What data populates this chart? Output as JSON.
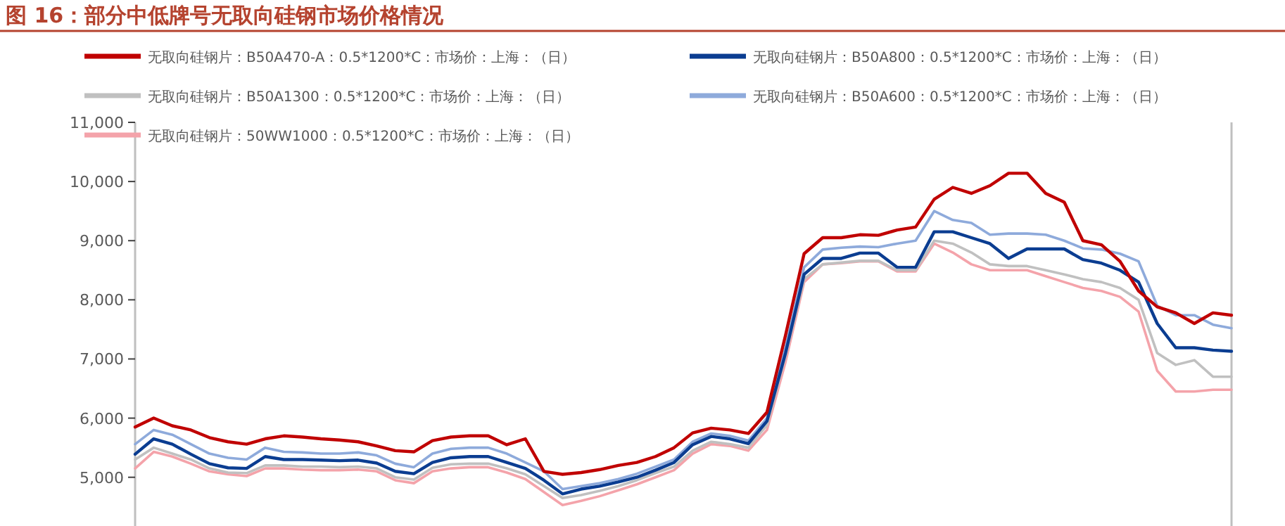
{
  "chart_data": {
    "type": "line",
    "title": "图 16：部分中低牌号无取向硅钢市场价格情况",
    "categories": [
      null,
      null,
      null,
      null,
      null,
      null,
      null,
      null,
      null,
      null,
      null,
      null,
      null,
      null,
      null,
      null,
      null,
      null,
      null,
      null,
      null,
      null,
      null,
      null,
      null,
      null,
      null,
      null,
      null,
      null,
      null,
      null,
      null,
      null,
      null,
      null,
      null,
      null,
      null,
      null,
      null,
      null,
      null,
      null,
      null,
      null,
      null,
      null,
      null,
      null,
      null,
      null,
      null,
      null,
      null,
      null,
      null,
      null,
      null,
      null
    ],
    "ylim": [
      4200,
      11000
    ],
    "yticks": [
      {
        "value": 5000,
        "label": "5,000"
      },
      {
        "value": 6000,
        "label": "6,000"
      },
      {
        "value": 7000,
        "label": "7,000"
      },
      {
        "value": 8000,
        "label": "8,000"
      },
      {
        "value": 9000,
        "label": "9,000"
      },
      {
        "value": 10000,
        "label": "10,000"
      },
      {
        "value": 11000,
        "label": "11,000"
      }
    ],
    "tick_labels": "y",
    "grid": false,
    "legend": "top",
    "marker": "none",
    "line_style": "solid",
    "series": [
      {
        "name": "无取向硅钢片：B50A470-A：0.5*1200*C：市场价：上海：（日）",
        "color": "#c00000",
        "values": [
          5850,
          6000,
          5870,
          5800,
          5670,
          5600,
          5560,
          5650,
          5700,
          5680,
          5650,
          5630,
          5600,
          5530,
          5450,
          5430,
          5620,
          5680,
          5700,
          5700,
          5550,
          5650,
          5100,
          5050,
          5080,
          5130,
          5200,
          5250,
          5350,
          5500,
          5750,
          5830,
          5800,
          5740,
          6100,
          7400,
          8780,
          9050,
          9050,
          9100,
          9090,
          9180,
          9230,
          9700,
          9900,
          9800,
          9930,
          10140,
          10140,
          9800,
          9650,
          9000,
          8930,
          8650,
          8150,
          7880,
          7780,
          7600,
          7780,
          7740
        ]
      },
      {
        "name": "无取向硅钢片：B50A800：0.5*1200*C：市场价：上海：（日）",
        "color": "#0b3d91",
        "values": [
          5390,
          5650,
          5560,
          5390,
          5230,
          5160,
          5150,
          5350,
          5300,
          5300,
          5290,
          5280,
          5290,
          5240,
          5100,
          5060,
          5250,
          5330,
          5350,
          5350,
          5250,
          5150,
          4950,
          4720,
          4800,
          4850,
          4920,
          5000,
          5120,
          5250,
          5550,
          5690,
          5650,
          5570,
          5950,
          7100,
          8430,
          8700,
          8700,
          8790,
          8790,
          8550,
          8550,
          9150,
          9150,
          9050,
          8950,
          8700,
          8860,
          8860,
          8860,
          8680,
          8620,
          8500,
          8300,
          7600,
          7190,
          7190,
          7150,
          7130
        ]
      },
      {
        "name": "无取向硅钢片：B50A1300：0.5*1200*C：市场价：上海：（日）",
        "color": "#c0c0c0",
        "values": [
          5300,
          5500,
          5400,
          5300,
          5150,
          5080,
          5070,
          5200,
          5200,
          5180,
          5180,
          5170,
          5180,
          5150,
          5000,
          4960,
          5160,
          5220,
          5230,
          5230,
          5150,
          5050,
          4850,
          4650,
          4700,
          4770,
          4850,
          4950,
          5070,
          5180,
          5450,
          5600,
          5560,
          5500,
          5880,
          7050,
          8350,
          8600,
          8630,
          8660,
          8660,
          8500,
          8500,
          9000,
          8950,
          8800,
          8600,
          8570,
          8570,
          8500,
          8430,
          8350,
          8300,
          8200,
          8000,
          7100,
          6900,
          6980,
          6700,
          6700
        ]
      },
      {
        "name": "无取向硅钢片：B50A600：0.5*1200*C：市场价：上海：（日）",
        "color": "#8eaadb",
        "values": [
          5560,
          5800,
          5720,
          5560,
          5400,
          5330,
          5300,
          5500,
          5430,
          5420,
          5400,
          5400,
          5420,
          5370,
          5230,
          5170,
          5400,
          5480,
          5500,
          5500,
          5400,
          5250,
          5100,
          4800,
          4850,
          4900,
          4970,
          5060,
          5180,
          5300,
          5600,
          5740,
          5700,
          5620,
          6000,
          7200,
          8550,
          8850,
          8880,
          8900,
          8890,
          8950,
          9000,
          9500,
          9350,
          9300,
          9100,
          9120,
          9120,
          9100,
          9000,
          8870,
          8850,
          8780,
          8650,
          7900,
          7740,
          7740,
          7580,
          7520
        ]
      },
      {
        "name": "无取向硅钢片：50WW1000：0.5*1200*C：市场价：上海：（日）",
        "color": "#f4a3aa",
        "values": [
          5150,
          5430,
          5350,
          5230,
          5100,
          5050,
          5020,
          5150,
          5150,
          5130,
          5120,
          5120,
          5130,
          5100,
          4950,
          4900,
          5100,
          5150,
          5170,
          5170,
          5080,
          4970,
          4750,
          4530,
          4600,
          4680,
          4780,
          4880,
          5000,
          5120,
          5400,
          5560,
          5530,
          5450,
          5800,
          6950,
          8300,
          8600,
          8620,
          8650,
          8650,
          8480,
          8480,
          8950,
          8800,
          8600,
          8500,
          8500,
          8500,
          8400,
          8300,
          8200,
          8150,
          8050,
          7800,
          6800,
          6450,
          6450,
          6480,
          6480
        ]
      }
    ]
  }
}
